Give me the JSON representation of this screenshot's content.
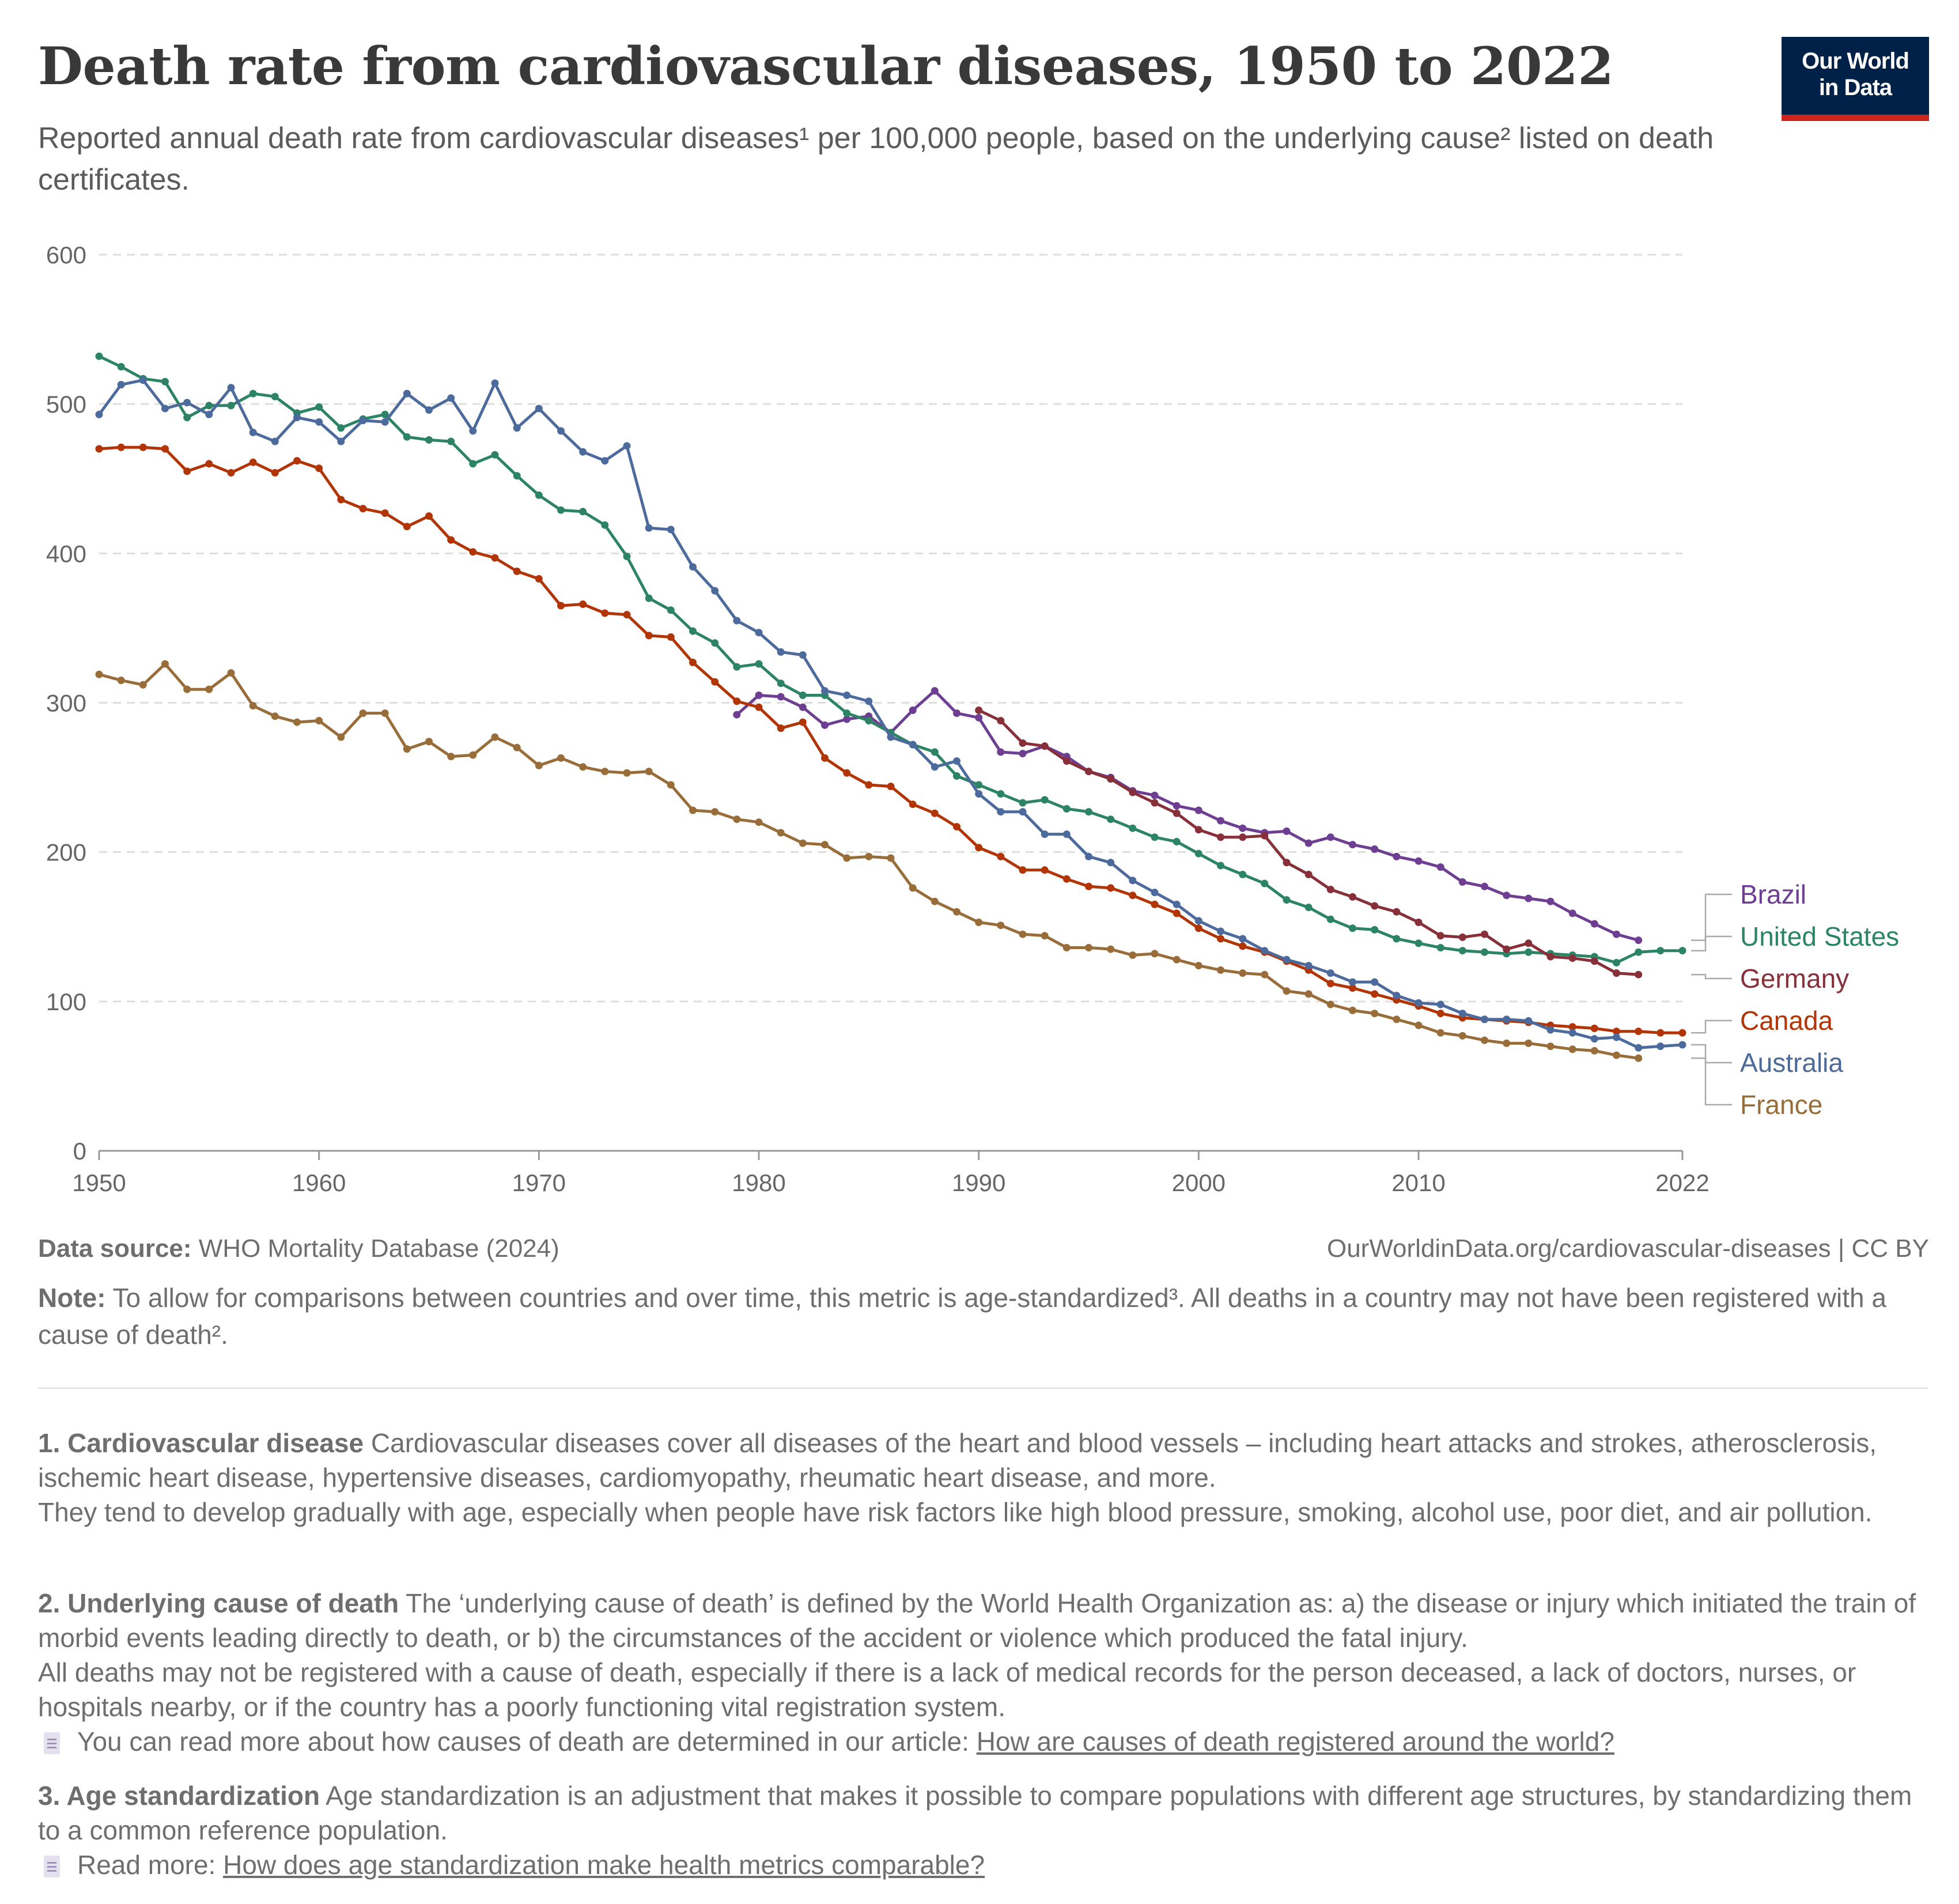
{
  "header": {
    "title": "Death rate from cardiovascular diseases, 1950 to 2022",
    "subtitle": "Reported annual death rate from cardiovascular diseases¹ per 100,000 people, based on the underlying cause² listed on death certificates."
  },
  "logo": {
    "line1": "Our World",
    "line2": "in Data"
  },
  "footer": {
    "source_label": "Data source:",
    "source_text": "WHO Mortality Database (2024)",
    "url_text": "OurWorldinData.org/cardiovascular-diseases | CC BY",
    "note_label": "Note:",
    "note_text": "To allow for comparisons between countries and over time, this metric is age-standardized³. All deaths in a country may not have been registered with a cause of death²."
  },
  "footnotes": [
    {
      "label": "1. Cardiovascular disease",
      "text": "Cardiovascular diseases cover all diseases of the heart and blood vessels – including heart attacks and strokes, atherosclerosis, ischemic heart disease, hypertensive diseases, cardiomyopathy, rheumatic heart disease, and more.",
      "text2": "They tend to develop gradually with age, especially when people have risk factors like high blood pressure, smoking, alcohol use, poor diet, and air pollution."
    },
    {
      "label": "2. Underlying cause of death",
      "text": "The ‘underlying cause of death’ is defined by the World Health Organization as: a) the disease or injury which initiated the train of morbid events leading directly to death, or b) the circumstances of the accident or violence which produced the fatal injury.",
      "text2": "All deaths may not be registered with a cause of death, especially if there is a lack of medical records for the person deceased, a lack of doctors, nurses, or hospitals nearby, or if the country has a poorly functioning vital registration system.",
      "link_prefix": "You can read more about how causes of death are determined in our article:",
      "link_text": "How are causes of death registered around the world?"
    },
    {
      "label": "3. Age standardization",
      "text": "Age standardization is an adjustment that makes it possible to compare populations with different age structures, by standardizing them to a common reference population.",
      "link_prefix": "Read more:",
      "link_text": "How does age standardization make health metrics comparable?"
    }
  ],
  "chart_data": {
    "type": "line",
    "title": "Death rate from cardiovascular diseases, 1950 to 2022",
    "xlabel": "",
    "ylabel": "",
    "xlim": [
      1950,
      2022
    ],
    "ylim": [
      0,
      600
    ],
    "x_ticks": [
      1950,
      1960,
      1970,
      1980,
      1990,
      2000,
      2010,
      2022
    ],
    "y_ticks": [
      0,
      100,
      200,
      300,
      400,
      500,
      600
    ],
    "grid": "horizontal dashed",
    "legend": "right (end-of-line labels)",
    "series": [
      {
        "name": "Brazil",
        "color": "#6d3e91",
        "start_year": 1979,
        "values": [
          292,
          305,
          304,
          297,
          285,
          289,
          291,
          280,
          295,
          308,
          293,
          290,
          267,
          266,
          271,
          264,
          254,
          250,
          241,
          238,
          231,
          228,
          221,
          216,
          213,
          214,
          206,
          210,
          205,
          202,
          197,
          194,
          190,
          180,
          177,
          171,
          169,
          167,
          159,
          152,
          145,
          141
        ]
      },
      {
        "name": "United States",
        "color": "#2c8465",
        "start_year": 1950,
        "values": [
          532,
          525,
          517,
          515,
          491,
          499,
          499,
          507,
          505,
          494,
          498,
          484,
          490,
          493,
          478,
          476,
          475,
          460,
          466,
          452,
          439,
          429,
          428,
          419,
          398,
          370,
          362,
          348,
          340,
          324,
          326,
          313,
          305,
          305,
          293,
          288,
          280,
          272,
          267,
          251,
          245,
          239,
          233,
          235,
          229,
          227,
          222,
          216,
          210,
          207,
          199,
          191,
          185,
          179,
          168,
          163,
          155,
          149,
          148,
          142,
          139,
          136,
          134,
          133,
          132,
          133,
          132,
          131,
          130,
          126,
          133,
          134,
          134
        ]
      },
      {
        "name": "Germany",
        "color": "#883039",
        "start_year": 1990,
        "values": [
          295,
          288,
          273,
          271,
          261,
          254,
          249,
          240,
          233,
          226,
          215,
          210,
          210,
          211,
          193,
          185,
          175,
          170,
          164,
          160,
          153,
          144,
          143,
          145,
          135,
          139,
          130,
          129,
          127,
          119,
          118
        ]
      },
      {
        "name": "Canada",
        "color": "#b13507",
        "start_year": 1950,
        "values": [
          470,
          471,
          471,
          470,
          455,
          460,
          454,
          461,
          454,
          462,
          457,
          436,
          430,
          427,
          418,
          425,
          409,
          401,
          397,
          388,
          383,
          365,
          366,
          360,
          359,
          345,
          344,
          327,
          314,
          301,
          297,
          283,
          287,
          263,
          253,
          245,
          244,
          232,
          226,
          217,
          203,
          197,
          188,
          188,
          182,
          177,
          176,
          171,
          165,
          159,
          149,
          142,
          137,
          133,
          127,
          121,
          112,
          109,
          105,
          101,
          97,
          92,
          89,
          88,
          87,
          86,
          84,
          83,
          82,
          80,
          80,
          79,
          79
        ]
      },
      {
        "name": "Australia",
        "color": "#4c6a9c",
        "start_year": 1950,
        "values": [
          493,
          513,
          516,
          497,
          501,
          493,
          511,
          481,
          475,
          491,
          488,
          475,
          489,
          488,
          507,
          496,
          504,
          482,
          514,
          484,
          497,
          482,
          468,
          462,
          472,
          417,
          416,
          391,
          375,
          355,
          347,
          334,
          332,
          308,
          305,
          301,
          277,
          272,
          257,
          261,
          239,
          227,
          227,
          212,
          212,
          197,
          193,
          181,
          173,
          165,
          154,
          147,
          142,
          134,
          128,
          124,
          119,
          113,
          113,
          104,
          99,
          98,
          92,
          88,
          88,
          87,
          81,
          79,
          75,
          76,
          69,
          70,
          71
        ]
      },
      {
        "name": "France",
        "color": "#996d39",
        "start_year": 1950,
        "values": [
          319,
          315,
          312,
          326,
          309,
          309,
          320,
          298,
          291,
          287,
          288,
          277,
          293,
          293,
          269,
          274,
          264,
          265,
          277,
          270,
          258,
          263,
          257,
          254,
          253,
          254,
          245,
          228,
          227,
          222,
          220,
          213,
          206,
          205,
          196,
          197,
          196,
          176,
          167,
          160,
          153,
          151,
          145,
          144,
          136,
          136,
          135,
          131,
          132,
          128,
          124,
          121,
          119,
          118,
          107,
          105,
          98,
          94,
          92,
          88,
          84,
          79,
          77,
          74,
          72,
          72,
          70,
          68,
          67,
          64,
          62
        ]
      }
    ]
  }
}
